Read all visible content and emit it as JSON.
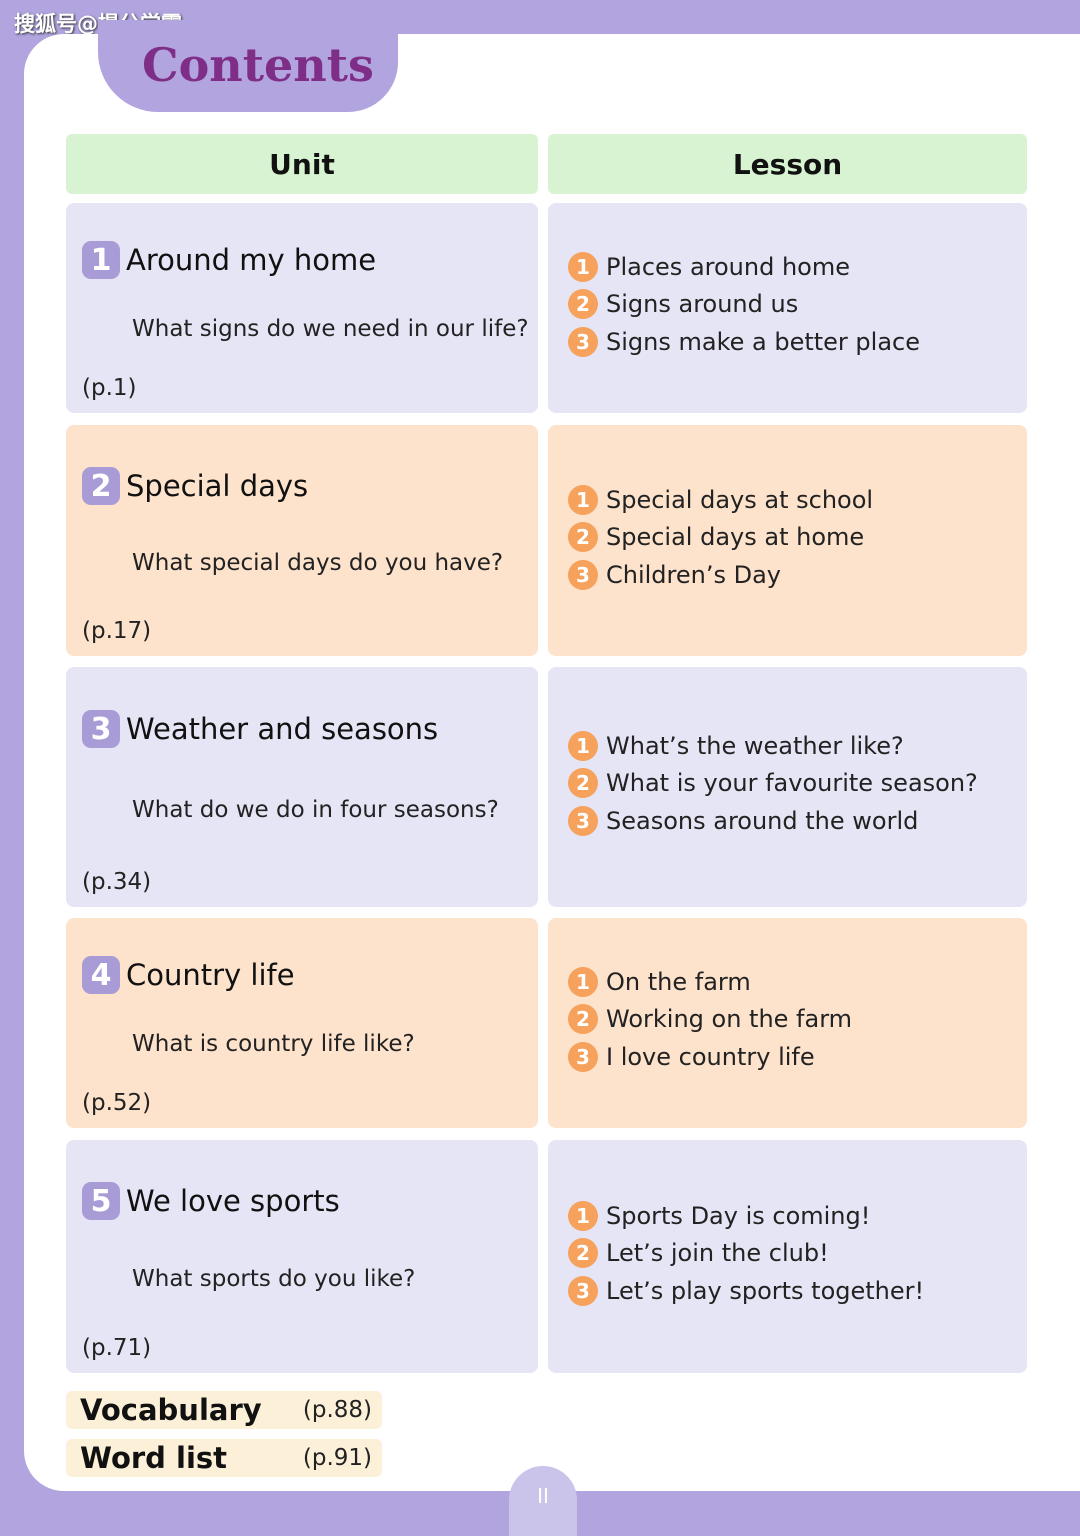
{
  "watermark": "搜狐号@提分学霸",
  "title": "Contents",
  "headers": {
    "unit": "Unit",
    "lesson": "Lesson"
  },
  "colors": {
    "purple_cell": "#e6e5f5",
    "orange_cell": "#fde2cc",
    "header": "#d8f3d2",
    "title": "#7e2e86",
    "frame": "#b1a4df"
  },
  "units": [
    {
      "num": "1",
      "title": "Around my home",
      "question": "What signs do we need in our life?",
      "page": "(p.1)",
      "lessons": [
        "Places around home",
        "Signs around us",
        "Signs make a better place"
      ]
    },
    {
      "num": "2",
      "title": "Special days",
      "question": "What special days do you have?",
      "page": "(p.17)",
      "lessons": [
        "Special days at school",
        "Special days at home",
        "Children’s Day"
      ]
    },
    {
      "num": "3",
      "title": "Weather and seasons",
      "question": "What do we do in four seasons?",
      "page": "(p.34)",
      "lessons": [
        "What’s the weather like?",
        "What is your favourite season?",
        "Seasons around the world"
      ]
    },
    {
      "num": "4",
      "title": "Country life",
      "question": "What is country life like?",
      "page": "(p.52)",
      "lessons": [
        "On the farm",
        "Working on the farm",
        "I love country life"
      ]
    },
    {
      "num": "5",
      "title": "We love sports",
      "question": "What sports do you like?",
      "page": "(p.71)",
      "lessons": [
        "Sports Day is coming!",
        "Let’s join the club!",
        "Let’s play sports together!"
      ]
    }
  ],
  "extras": [
    {
      "name": "Vocabulary",
      "page": "(p.88)"
    },
    {
      "name": "Word list",
      "page": "(p.91)"
    }
  ],
  "page_number": "II"
}
